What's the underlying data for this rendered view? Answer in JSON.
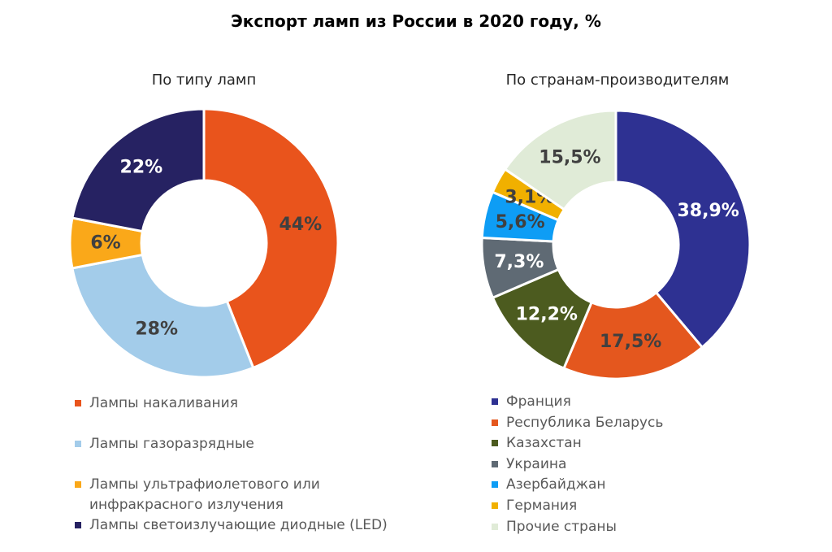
{
  "page_title": "Экспорт ламп из России в 2020 году, %",
  "units": "%",
  "text_colors": {
    "title": "#000000",
    "subtitle": "#262626",
    "legend_text": "#595959",
    "value_label_dark": "#404040",
    "value_label_light": "#FFFFFF"
  },
  "chart_data": [
    {
      "type": "pie",
      "subtype": "donut",
      "title": "По типу ламп",
      "categories": [
        "Лампы накаливания",
        "Лампы газоразрядные",
        "Лампы ультрафиолетового или инфракрасного излучения",
        "Лампы светоизлучающие диодные (LED)"
      ],
      "values": [
        44,
        28,
        6,
        22
      ],
      "value_labels": [
        "44%",
        "28%",
        "6%",
        "22%"
      ],
      "colors": [
        "#E9541C",
        "#A3CCEA",
        "#FAA819",
        "#262262"
      ],
      "label_colors": [
        "#404040",
        "#404040",
        "#404040",
        "#FFFFFF"
      ],
      "legend_labels": [
        "Лампы накаливания",
        "Лампы газоразрядные",
        "Лампы ультрафиолетового или\nинфракрасного излучения",
        "Лампы светоизлучающие диодные (LED)"
      ],
      "start_angle_deg": 0,
      "direction": "clockwise",
      "legend_position": "bottom-left"
    },
    {
      "type": "pie",
      "subtype": "donut",
      "title": "По странам-производителям",
      "categories": [
        "Франция",
        "Республика Беларусь",
        "Казахстан",
        "Украина",
        "Азербайджан",
        "Германия",
        "Прочие страны"
      ],
      "values": [
        38.9,
        17.5,
        12.2,
        7.3,
        5.6,
        3.1,
        15.5
      ],
      "value_labels": [
        "38,9%",
        "17,5%",
        "12,2%",
        "7,3%",
        "5,6%",
        "3,1%",
        "15,5%"
      ],
      "colors": [
        "#2E3192",
        "#E4571E",
        "#4C5B1F",
        "#5F6A74",
        "#0E9DF5",
        "#F1B000",
        "#E0EBD7"
      ],
      "label_colors": [
        "#FFFFFF",
        "#404040",
        "#FFFFFF",
        "#FFFFFF",
        "#404040",
        "#404040",
        "#404040"
      ],
      "legend_labels": [
        "Франция",
        "Республика Беларусь",
        "Казахстан",
        "Украина",
        "Азербайджан",
        "Германия",
        "Прочие страны"
      ],
      "start_angle_deg": 0,
      "direction": "clockwise",
      "legend_position": "bottom-left"
    }
  ]
}
